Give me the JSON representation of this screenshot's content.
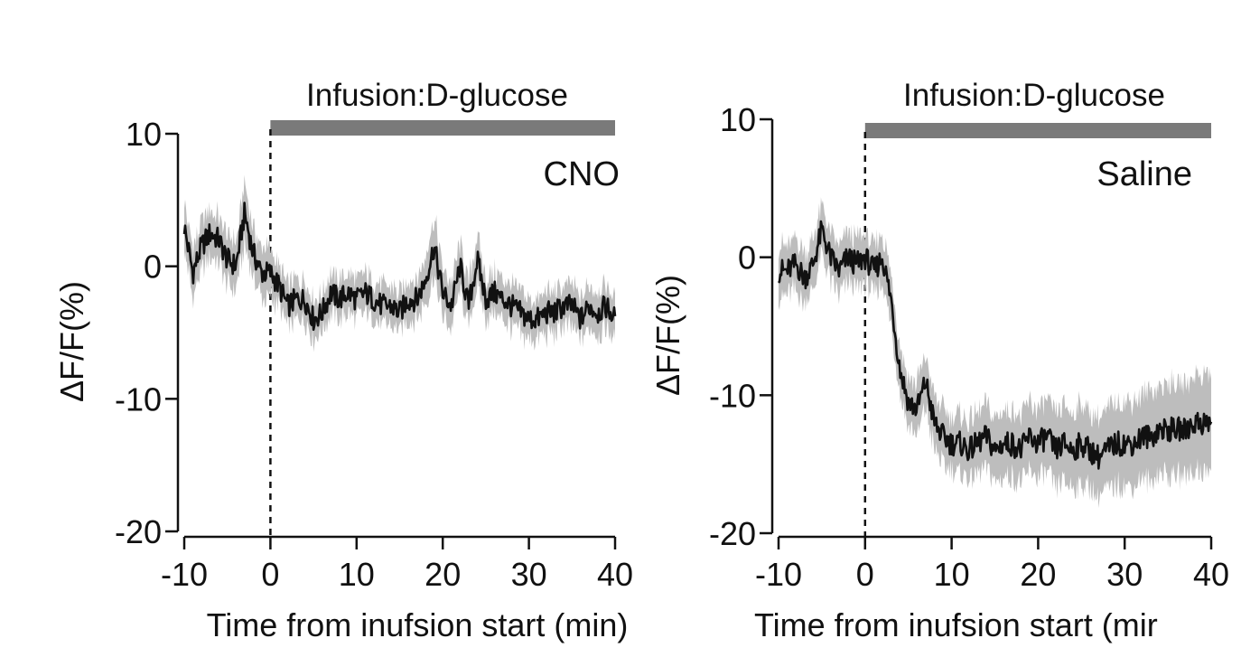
{
  "chart_data": [
    {
      "type": "line",
      "title": "",
      "annotation": "CNO",
      "infusion_label": "Infusion:D-glucose",
      "infusion_start": 0,
      "infusion_end": 40,
      "xlabel": "Time from inufsion start (min)",
      "ylabel": "ΔF/F(%)",
      "xlim": [
        -10,
        40
      ],
      "ylim": [
        -20,
        10
      ],
      "xticks": [
        -10,
        0,
        10,
        20,
        30,
        40
      ],
      "yticks": [
        10,
        0,
        -10,
        -20
      ],
      "series": [
        {
          "band": "sem",
          "x": [
            -10,
            -9,
            -8,
            -7,
            -6,
            -5,
            -4,
            -3,
            -2,
            -1,
            0,
            1,
            2,
            3,
            4,
            5,
            6,
            7,
            8,
            9,
            10,
            11,
            12,
            13,
            14,
            15,
            16,
            17,
            18,
            19,
            20,
            21,
            22,
            23,
            24,
            25,
            26,
            27,
            28,
            29,
            30,
            31,
            32,
            33,
            34,
            35,
            36,
            37,
            38,
            39,
            40
          ],
          "y": [
            3,
            -0.5,
            1.5,
            2.5,
            2,
            0.5,
            0,
            4,
            1,
            -0.5,
            -0.5,
            -1.5,
            -3,
            -2.5,
            -2.5,
            -4,
            -3.5,
            -2,
            -2.5,
            -2,
            -2.5,
            -2,
            -2.5,
            -3,
            -3,
            -3.5,
            -2.5,
            -2.5,
            -1,
            1.5,
            -2,
            -3,
            0,
            -3,
            0.5,
            -2.5,
            -2,
            -2.5,
            -3,
            -3.5,
            -4,
            -4,
            -3.5,
            -3.5,
            -3,
            -3,
            -4,
            -3,
            -3.5,
            -3,
            -4
          ],
          "err": [
            1.5,
            1.5,
            1.5,
            1.5,
            1.5,
            1.5,
            1.5,
            2,
            1.5,
            1.5,
            1.5,
            1.2,
            1.2,
            1.2,
            1.2,
            1.2,
            1.2,
            1.2,
            1.2,
            1.2,
            1.2,
            1.2,
            1.2,
            1.2,
            1.2,
            1.2,
            1.2,
            1.2,
            1.5,
            2,
            1.5,
            1.5,
            1.5,
            1.5,
            1.5,
            1.3,
            1.3,
            1.3,
            1.3,
            1.3,
            1.3,
            1.3,
            1.3,
            1.3,
            1.3,
            1.3,
            1.3,
            1.3,
            1.3,
            1.3,
            1.3
          ]
        }
      ]
    },
    {
      "type": "line",
      "title": "",
      "annotation": "Saline",
      "infusion_label": "Infusion:D-glucose",
      "infusion_start": 0,
      "infusion_end": 40,
      "xlabel": "Time from inufsion start (mir",
      "ylabel": "ΔF/F(%)",
      "xlim": [
        -10,
        40
      ],
      "ylim": [
        -20,
        10
      ],
      "xticks": [
        -10,
        0,
        10,
        20,
        30,
        40
      ],
      "yticks": [
        10,
        0,
        -10,
        -20
      ],
      "series": [
        {
          "band": "sem",
          "x": [
            -10,
            -9,
            -8,
            -7,
            -6,
            -5,
            -4,
            -3,
            -2,
            -1,
            0,
            1,
            2,
            3,
            4,
            5,
            6,
            7,
            8,
            9,
            10,
            11,
            12,
            13,
            14,
            15,
            16,
            17,
            18,
            19,
            20,
            21,
            22,
            23,
            24,
            25,
            26,
            27,
            28,
            29,
            30,
            31,
            32,
            33,
            34,
            35,
            36,
            37,
            38,
            39,
            40
          ],
          "y": [
            -1,
            -1,
            -0.5,
            -1.5,
            -0.5,
            2,
            0,
            -1,
            0,
            -0.5,
            0,
            -1,
            0,
            -3,
            -8,
            -10.5,
            -11,
            -9,
            -12,
            -13,
            -13.5,
            -13.5,
            -14,
            -13.5,
            -13,
            -14,
            -13.5,
            -13.5,
            -14,
            -13,
            -13.5,
            -13,
            -14,
            -13.5,
            -14,
            -13.5,
            -14,
            -14.5,
            -14,
            -13.5,
            -13.5,
            -13.5,
            -13,
            -13,
            -12.5,
            -12.5,
            -12.5,
            -12.5,
            -12,
            -12,
            -12
          ]
        }
      ]
    }
  ]
}
